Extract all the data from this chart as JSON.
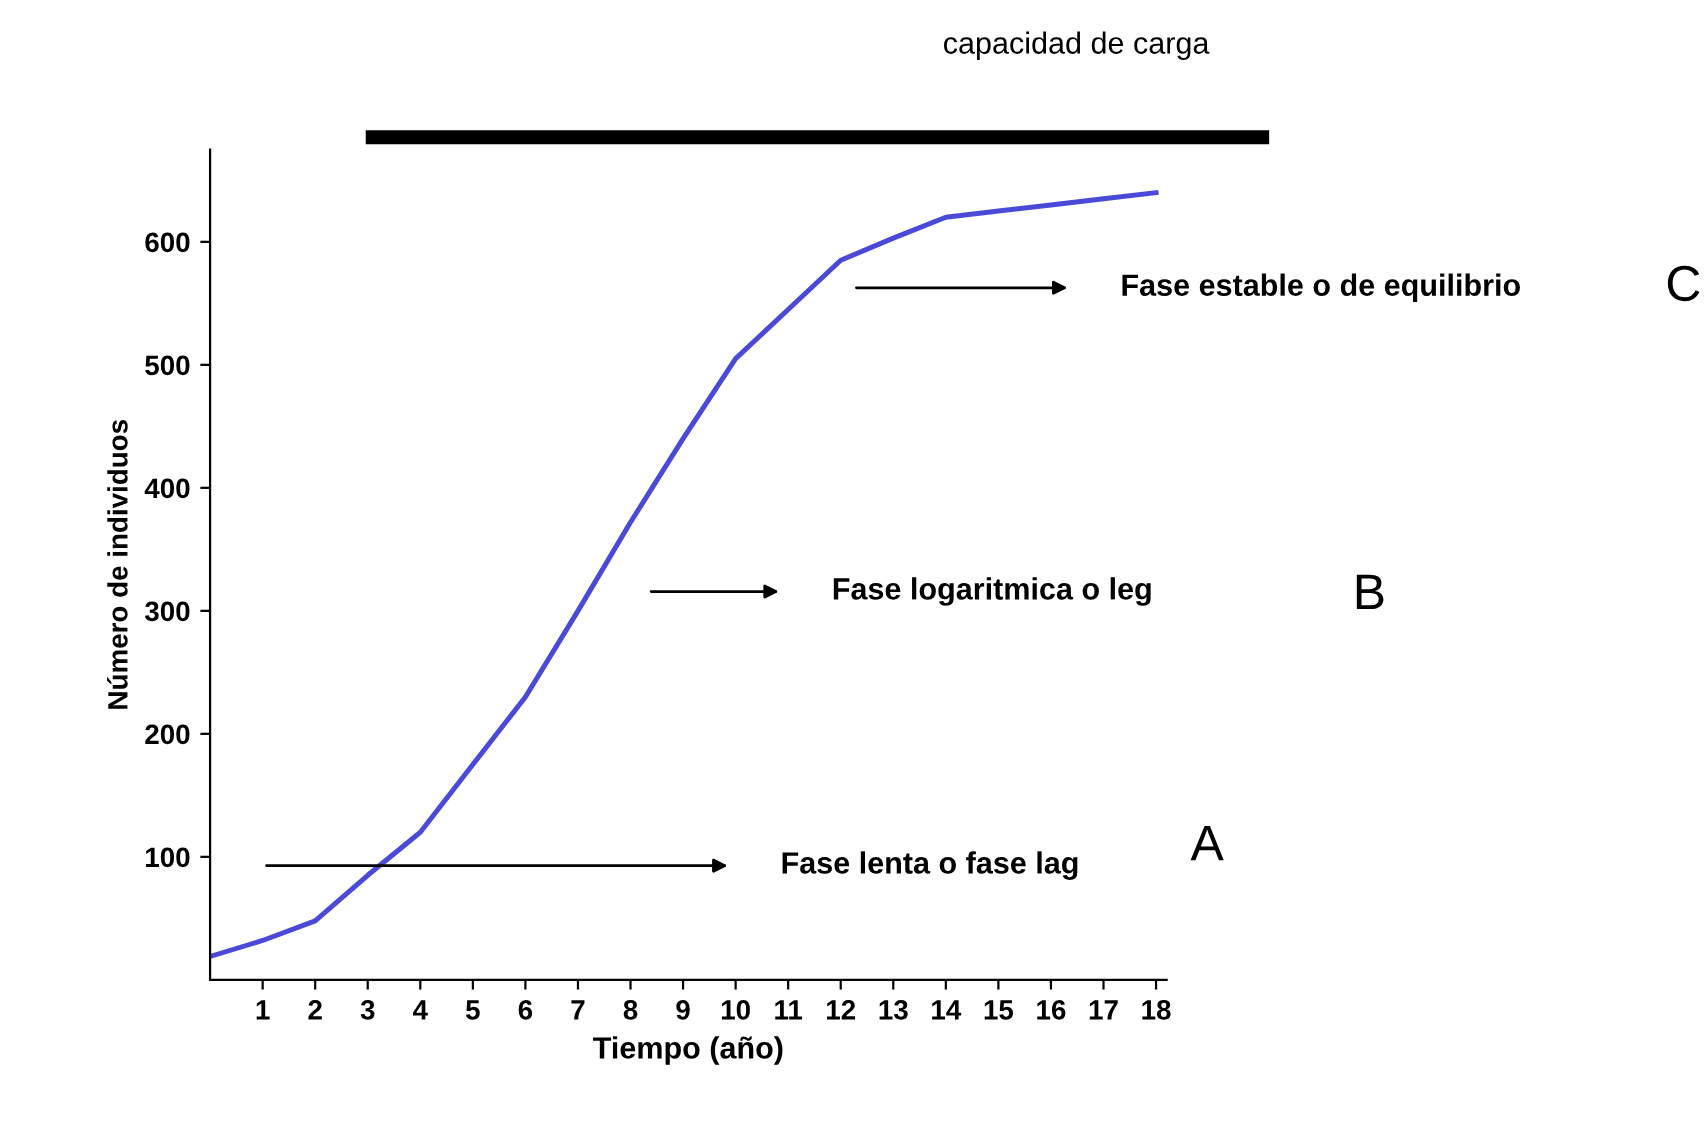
{
  "chart_data": {
    "type": "line",
    "xlabel": "Tiempo (año)",
    "ylabel": "Número de individuos",
    "x": [
      0,
      1,
      2,
      3,
      4,
      5,
      6,
      7,
      8,
      9,
      10,
      11,
      12,
      13,
      14,
      15,
      16,
      17,
      18
    ],
    "series": [
      {
        "color": "#4a4ad8",
        "values": [
          19,
          32,
          48,
          85,
          120,
          175,
          230,
          300,
          372,
          440,
          505,
          545,
          585,
          603,
          620,
          625,
          630,
          635,
          640
        ]
      }
    ],
    "xlim": [
      0,
      18.2
    ],
    "ylim": [
      0,
      675
    ],
    "xticks": [
      1,
      2,
      3,
      4,
      5,
      6,
      7,
      8,
      9,
      10,
      11,
      12,
      13,
      14,
      15,
      16,
      17,
      18
    ],
    "yticks": [
      100,
      200,
      300,
      400,
      500,
      600
    ],
    "grid": false,
    "legend": false,
    "marker": "none",
    "line_style": "solid",
    "ref_lines": [
      {
        "axis": "y",
        "value": 685,
        "label": "capacidad de carga",
        "color": "#000000"
      }
    ],
    "annotations": [
      "Fase lenta o fase lag",
      "Fase logaritmica o leg",
      "Fase estable o de equilibrio",
      "A",
      "B",
      "C"
    ]
  }
}
